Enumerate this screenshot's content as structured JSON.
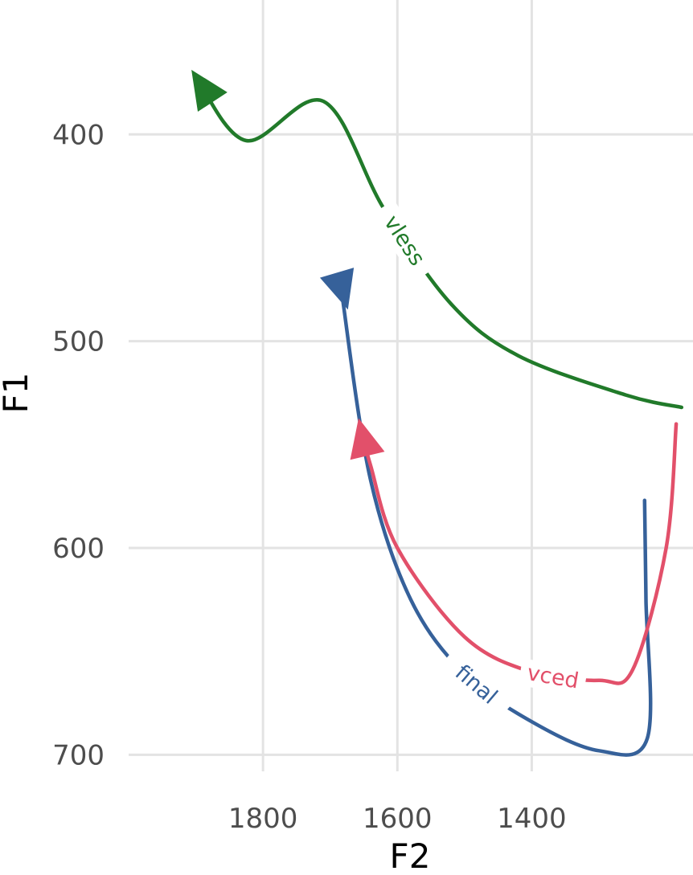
{
  "chart_data": {
    "type": "line",
    "xlabel": "F2",
    "ylabel": "F1",
    "x_reversed": true,
    "y_reversed": true,
    "xlim": [
      2000,
      1160
    ],
    "ylim": [
      335,
      708
    ],
    "x_ticks": [
      1800,
      1600,
      1400
    ],
    "y_ticks": [
      400,
      500,
      600,
      700
    ],
    "grid": true,
    "legend": "none (direct labels on lines)",
    "series": [
      {
        "name": "vless",
        "color": "#217a2a",
        "points": [
          [
            1177,
            532
          ],
          [
            1260,
            526
          ],
          [
            1420,
            507
          ],
          [
            1520,
            482
          ],
          [
            1620,
            436
          ],
          [
            1710,
            384
          ],
          [
            1825,
            403
          ],
          [
            1900,
            372
          ]
        ]
      },
      {
        "name": "final",
        "color": "#36619a",
        "points": [
          [
            1232,
            577
          ],
          [
            1230,
            625
          ],
          [
            1228,
            692
          ],
          [
            1300,
            698
          ],
          [
            1400,
            684
          ],
          [
            1500,
            661
          ],
          [
            1580,
            625
          ],
          [
            1640,
            567
          ],
          [
            1680,
            483
          ],
          [
            1677,
            481
          ]
        ]
      },
      {
        "name": "vced",
        "color": "#e2506a",
        "points": [
          [
            1185,
            540
          ],
          [
            1200,
            600
          ],
          [
            1250,
            659
          ],
          [
            1300,
            664
          ],
          [
            1400,
            660
          ],
          [
            1500,
            643
          ],
          [
            1600,
            600
          ],
          [
            1640,
            560
          ],
          [
            1655,
            541
          ]
        ]
      }
    ]
  }
}
